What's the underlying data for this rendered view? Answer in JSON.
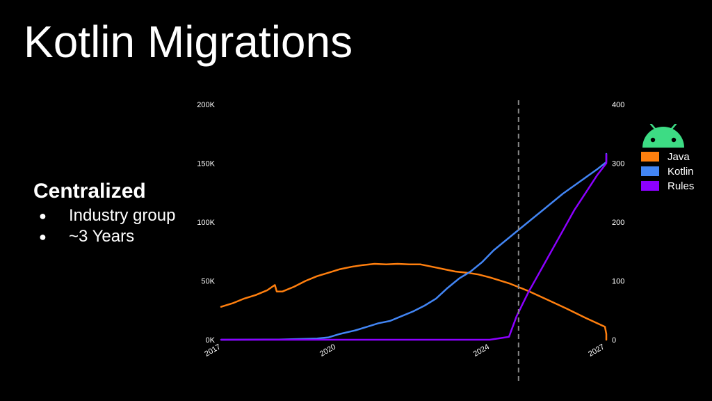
{
  "slide": {
    "title": "Kotlin Migrations",
    "section_heading": "Centralized",
    "bullets": [
      "Industry group",
      "~3 Years"
    ],
    "bullet_symbol": "●"
  },
  "legend": {
    "logo_icon": "android-robot-icon",
    "logo_color": "#3ddc84",
    "entries": [
      {
        "label": "Java",
        "color": "#ff7f0e"
      },
      {
        "label": "Kotlin",
        "color": "#4285f4"
      },
      {
        "label": "Rules",
        "color": "#8c00ff"
      }
    ]
  },
  "chart_data": {
    "type": "line",
    "title": "",
    "xlabel": "",
    "ylabel": "",
    "x_ticks": [
      2017,
      2020,
      2024,
      2027
    ],
    "xlim": [
      2017,
      2027
    ],
    "y_left": {
      "ticks": [
        "0K",
        "50K",
        "100K",
        "150K",
        "200K"
      ],
      "lim": [
        0,
        200000
      ]
    },
    "y_right": {
      "ticks": [
        "0",
        "100",
        "200",
        "300",
        "400"
      ],
      "lim": [
        0,
        400
      ]
    },
    "grid": false,
    "legend_placement": "right",
    "vline": {
      "x": 2024.75,
      "style": "dashed",
      "color": "#888888"
    },
    "series": [
      {
        "name": "Java",
        "axis": "left",
        "color": "#ff7f0e",
        "points": [
          [
            2017,
            28000
          ],
          [
            2017.3,
            31000
          ],
          [
            2017.6,
            35000
          ],
          [
            2017.9,
            38000
          ],
          [
            2018.2,
            42000
          ],
          [
            2018.4,
            46500
          ],
          [
            2018.45,
            41000
          ],
          [
            2018.6,
            41000
          ],
          [
            2018.9,
            45000
          ],
          [
            2019.2,
            50000
          ],
          [
            2019.5,
            54000
          ],
          [
            2019.8,
            57000
          ],
          [
            2020.1,
            60000
          ],
          [
            2020.4,
            62000
          ],
          [
            2020.7,
            63500
          ],
          [
            2021.0,
            64500
          ],
          [
            2021.3,
            64000
          ],
          [
            2021.6,
            64500
          ],
          [
            2021.9,
            64000
          ],
          [
            2022.2,
            64000
          ],
          [
            2022.5,
            62000
          ],
          [
            2022.8,
            60000
          ],
          [
            2023.1,
            58000
          ],
          [
            2023.4,
            57000
          ],
          [
            2023.7,
            55500
          ],
          [
            2024.0,
            53000
          ],
          [
            2024.5,
            48000
          ],
          [
            2025.0,
            41500
          ],
          [
            2025.5,
            34000
          ],
          [
            2026.0,
            26500
          ],
          [
            2026.5,
            18500
          ],
          [
            2027.0,
            11000
          ],
          [
            2027.4,
            5000
          ],
          [
            2027.8,
            0
          ]
        ]
      },
      {
        "name": "Kotlin",
        "axis": "left",
        "color": "#4285f4",
        "points": [
          [
            2017,
            0
          ],
          [
            2018.5,
            200
          ],
          [
            2019.5,
            1000
          ],
          [
            2019.8,
            2000
          ],
          [
            2020.1,
            5000
          ],
          [
            2020.5,
            8000
          ],
          [
            2020.8,
            11000
          ],
          [
            2021.1,
            14000
          ],
          [
            2021.4,
            16000
          ],
          [
            2021.7,
            20000
          ],
          [
            2022.0,
            24000
          ],
          [
            2022.3,
            29000
          ],
          [
            2022.6,
            35000
          ],
          [
            2022.9,
            44000
          ],
          [
            2023.2,
            52000
          ],
          [
            2023.5,
            58000
          ],
          [
            2023.8,
            66000
          ],
          [
            2024.1,
            76000
          ],
          [
            2024.4,
            84000
          ],
          [
            2024.7,
            92000
          ],
          [
            2025.0,
            100000
          ],
          [
            2025.3,
            108000
          ],
          [
            2025.6,
            116000
          ],
          [
            2025.9,
            124000
          ],
          [
            2026.2,
            131000
          ],
          [
            2026.5,
            138000
          ],
          [
            2026.8,
            145000
          ],
          [
            2027.1,
            151000
          ],
          [
            2027.4,
            156000
          ],
          [
            2027.75,
            158000
          ]
        ]
      },
      {
        "name": "Rules",
        "axis": "right",
        "color": "#8c00ff",
        "points": [
          [
            2017,
            0
          ],
          [
            2024.0,
            0
          ],
          [
            2024.3,
            3
          ],
          [
            2024.5,
            5
          ],
          [
            2024.7,
            40
          ],
          [
            2025.0,
            80
          ],
          [
            2025.3,
            115
          ],
          [
            2025.6,
            150
          ],
          [
            2025.9,
            185
          ],
          [
            2026.2,
            220
          ],
          [
            2026.5,
            250
          ],
          [
            2026.8,
            280
          ],
          [
            2027.1,
            300
          ],
          [
            2027.4,
            305
          ],
          [
            2027.75,
            315
          ]
        ]
      }
    ]
  }
}
